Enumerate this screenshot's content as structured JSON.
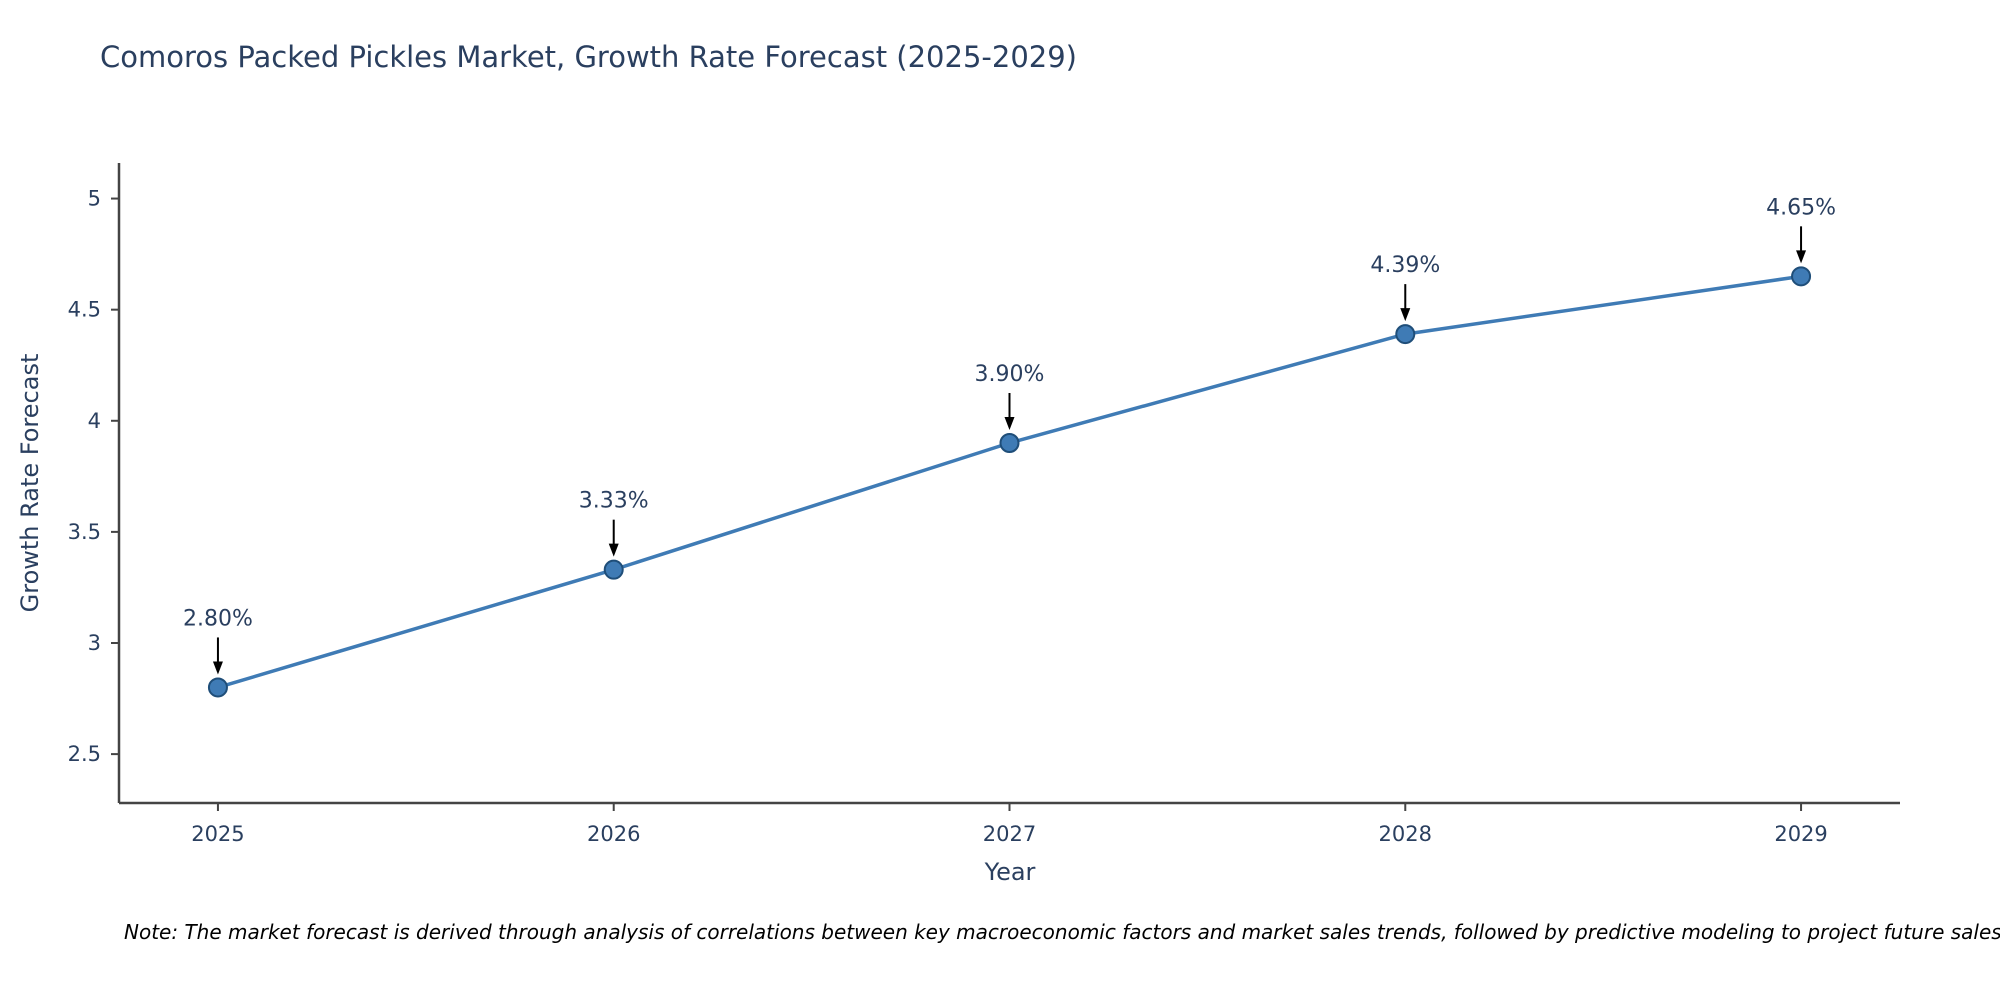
{
  "note": "Note: The market forecast is derived through analysis of correlations between key macroeconomic factors and market sales trends, followed by predictive modeling to project future sales",
  "chart_data": {
    "type": "line",
    "title": "Comoros Packed Pickles Market, Growth Rate Forecast (2025-2029)",
    "xlabel": "Year",
    "ylabel": "Growth Rate Forecast",
    "x": [
      2025,
      2026,
      2027,
      2028,
      2029
    ],
    "values": [
      2.8,
      3.33,
      3.9,
      4.39,
      4.65
    ],
    "point_labels": [
      "2.80%",
      "3.33%",
      "3.90%",
      "4.39%",
      "4.65%"
    ],
    "xtick_labels": [
      "2025",
      "2026",
      "2027",
      "2028",
      "2029"
    ],
    "yticks": [
      2.5,
      3,
      3.5,
      4,
      4.5,
      5
    ],
    "ytick_labels": [
      "2.5",
      "3",
      "3.5",
      "4",
      "4.5",
      "5"
    ],
    "xlim": [
      2024.75,
      2029.25
    ],
    "ylim": [
      2.28,
      5.16
    ],
    "grid": false,
    "legend": "none",
    "colors": {
      "line": "#3f7bb5",
      "marker": "#3f7bb5",
      "marker_edge": "#1f4e79",
      "text": "#2a3f5f",
      "axis": "#444444",
      "annotation_arrow": "#000000"
    }
  }
}
